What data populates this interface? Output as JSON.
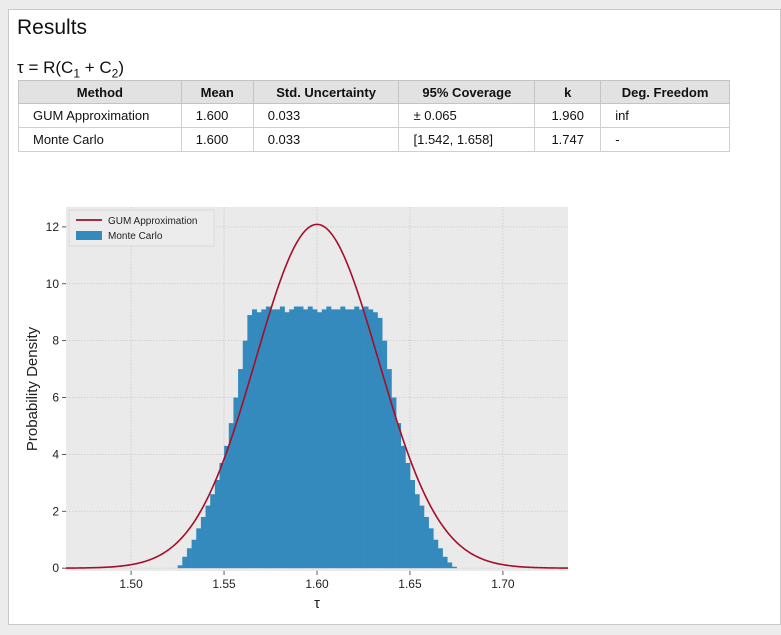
{
  "panel": {
    "title": "Results",
    "formula": {
      "tau": "τ",
      "eq": " = R(C",
      "sub1": "1",
      "plus": " + C",
      "sub2": "2",
      "close": ")"
    }
  },
  "table": {
    "headers": [
      "Method",
      "Mean",
      "Std. Uncertainty",
      "95% Coverage",
      "k",
      "Deg. Freedom"
    ],
    "rows": [
      [
        "GUM Approximation",
        "1.600",
        "0.033",
        "± 0.065",
        "1.960",
        "inf"
      ],
      [
        "Monte Carlo",
        "1.600",
        "0.033",
        "[1.542, 1.658]",
        "1.747",
        "-"
      ]
    ]
  },
  "colors": {
    "gum_line": "#a50e2a",
    "mc_bars": "#348abd",
    "axes_bg": "#eaeaea",
    "grid": "#c9c9c9"
  },
  "chart_data": {
    "type": "bar",
    "xlabel": "τ",
    "ylabel": "Probability Density",
    "xlim": [
      1.465,
      1.735
    ],
    "ylim": [
      -0.1,
      12.7
    ],
    "xticks": [
      1.5,
      1.55,
      1.6,
      1.65,
      1.7
    ],
    "xtick_labels": [
      "1.50",
      "1.55",
      "1.60",
      "1.65",
      "1.70"
    ],
    "yticks": [
      0,
      2,
      4,
      6,
      8,
      10,
      12
    ],
    "ytick_labels": [
      "0",
      "2",
      "4",
      "6",
      "8",
      "10",
      "12"
    ],
    "grid": true,
    "legend_position": "top-left",
    "series": [
      {
        "name": "GUM Approximation",
        "kind": "line",
        "distribution": "normal",
        "mean": 1.6,
        "std": 0.033
      },
      {
        "name": "Monte Carlo",
        "kind": "histogram",
        "bin_width": 0.0025,
        "bins_x": [
          1.5263,
          1.5288,
          1.5313,
          1.5338,
          1.5363,
          1.5388,
          1.5413,
          1.5438,
          1.5463,
          1.5488,
          1.5513,
          1.5538,
          1.5563,
          1.5588,
          1.5613,
          1.5638,
          1.5663,
          1.5688,
          1.5713,
          1.5738,
          1.5763,
          1.5788,
          1.5813,
          1.5838,
          1.5863,
          1.5888,
          1.5913,
          1.5938,
          1.5963,
          1.5988,
          1.6013,
          1.6038,
          1.6063,
          1.6088,
          1.6113,
          1.6138,
          1.6163,
          1.6188,
          1.6213,
          1.6238,
          1.6263,
          1.6288,
          1.6313,
          1.6338,
          1.6363,
          1.6388,
          1.6413,
          1.6438,
          1.6463,
          1.6488,
          1.6513,
          1.6538,
          1.6563,
          1.6588,
          1.6613,
          1.6638,
          1.6663,
          1.6688,
          1.6713,
          1.6738
        ],
        "values": [
          0.1,
          0.4,
          0.7,
          1.0,
          1.4,
          1.8,
          2.2,
          2.6,
          3.1,
          3.7,
          4.3,
          5.1,
          6.0,
          7.0,
          8.0,
          8.9,
          9.1,
          9.0,
          9.1,
          9.2,
          9.1,
          9.1,
          9.2,
          9.0,
          9.1,
          9.2,
          9.2,
          9.1,
          9.2,
          9.1,
          9.0,
          9.1,
          9.2,
          9.1,
          9.1,
          9.2,
          9.1,
          9.1,
          9.2,
          9.1,
          9.2,
          9.1,
          9.0,
          8.8,
          8.0,
          7.0,
          6.0,
          5.1,
          4.3,
          3.7,
          3.1,
          2.6,
          2.2,
          1.8,
          1.4,
          1.0,
          0.7,
          0.4,
          0.2,
          0.05
        ]
      }
    ]
  }
}
